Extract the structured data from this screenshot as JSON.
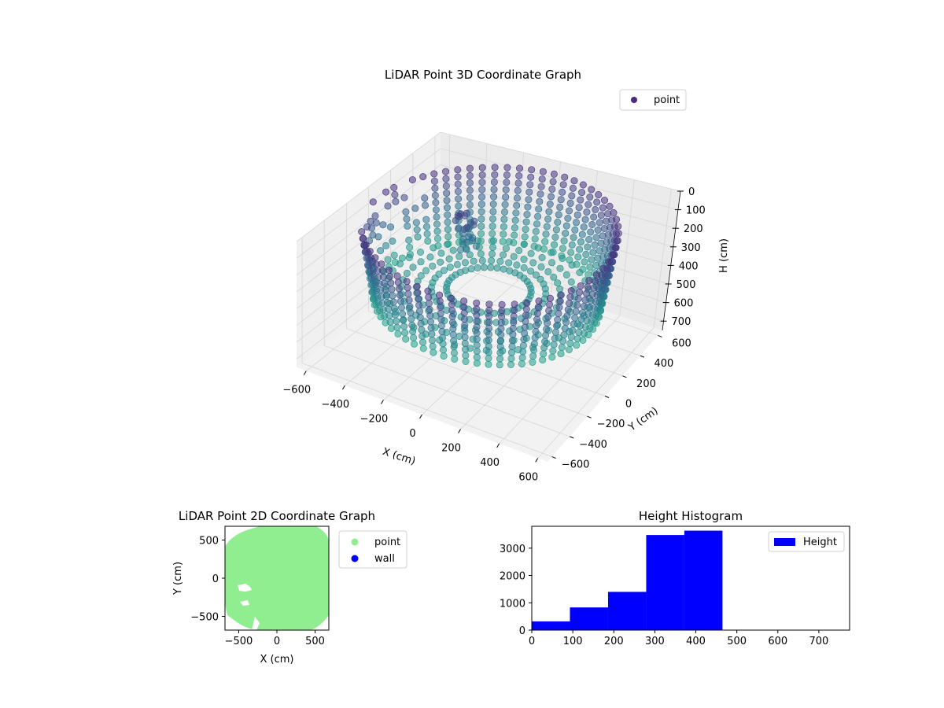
{
  "chart_data": [
    {
      "type": "scatter3d",
      "title": "LiDAR Point 3D Coordinate Graph",
      "xlabel": "X (cm)",
      "ylabel": "Y (cm)",
      "zlabel": "H (cm)",
      "xlim": [
        -650,
        650
      ],
      "ylim": [
        -650,
        650
      ],
      "zlim": [
        750,
        0
      ],
      "z_inverted": true,
      "x_ticks": [
        -600,
        -400,
        -200,
        0,
        200,
        400,
        600
      ],
      "y_ticks": [
        -600,
        -400,
        -200,
        0,
        200,
        400,
        600
      ],
      "z_ticks": [
        0,
        100,
        200,
        300,
        400,
        500,
        600,
        700
      ],
      "legend": [
        {
          "label": "point",
          "color": "#472d7b"
        }
      ],
      "legend_position": "upper right",
      "colormap": "viridis",
      "grid": true,
      "description_of_points": "Ring-shaped wall of points with radius about 600 cm, heights roughly 50 to 450 cm, shaded by height (dark purple high, teal low)."
    },
    {
      "type": "scatter",
      "title": "LiDAR Point 2D Coordinate Graph",
      "xlabel": "X (cm)",
      "ylabel": "Y (cm)",
      "xlim": [
        -680,
        680
      ],
      "ylim": [
        -680,
        680
      ],
      "x_ticks": [
        -500,
        0,
        500
      ],
      "y_ticks": [
        -500,
        0,
        500
      ],
      "series": [
        {
          "name": "point",
          "color": "#90ee90"
        },
        {
          "name": "wall",
          "color": "#0000ff"
        }
      ],
      "legend_position": "outside right"
    },
    {
      "type": "histogram",
      "title": "Height Histogram",
      "xlim": [
        0,
        775
      ],
      "ylim": [
        0,
        3800
      ],
      "x_ticks": [
        0,
        100,
        200,
        300,
        400,
        500,
        600,
        700
      ],
      "y_ticks": [
        0,
        1000,
        2000,
        3000
      ],
      "bins": [
        {
          "start": 0,
          "end": 93,
          "count": 320
        },
        {
          "start": 93,
          "end": 186,
          "count": 830
        },
        {
          "start": 186,
          "end": 279,
          "count": 1400
        },
        {
          "start": 279,
          "end": 372,
          "count": 3480
        },
        {
          "start": 372,
          "end": 465,
          "count": 3640
        }
      ],
      "series": [
        {
          "name": "Height",
          "color": "#0000ff"
        }
      ],
      "legend_position": "upper right"
    }
  ]
}
